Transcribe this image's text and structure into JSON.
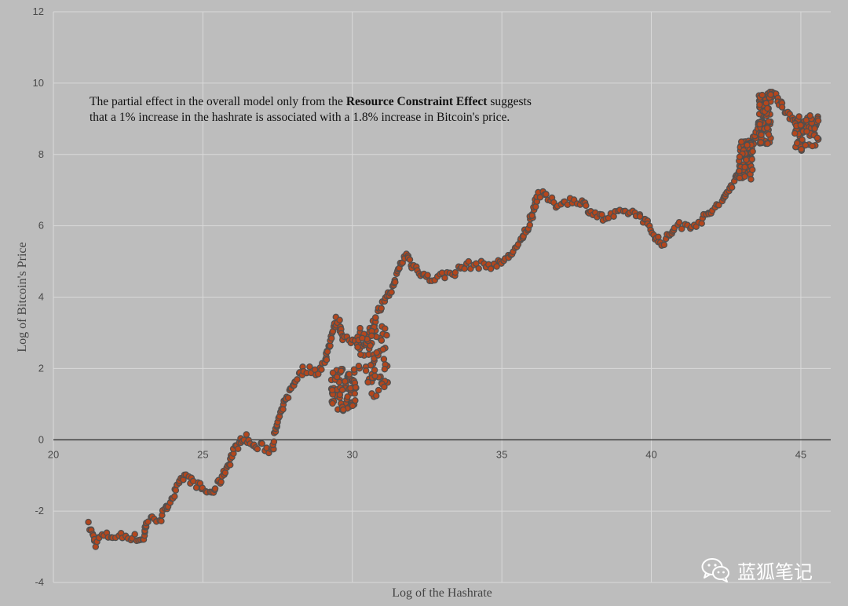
{
  "chart_data": {
    "type": "scatter",
    "xlabel": "Log of the Hashrate",
    "ylabel": "Log of Bitcoin's Price",
    "xlim": [
      20,
      46
    ],
    "ylim": [
      -4,
      12
    ],
    "xticks": [
      20,
      25,
      30,
      35,
      40,
      45
    ],
    "yticks": [
      -4,
      -2,
      0,
      2,
      4,
      6,
      8,
      10,
      12
    ],
    "grid": true,
    "marker_fill": "#b5461c",
    "marker_edge": "#4f4f4f",
    "background": "#bdbdbd",
    "annotation": {
      "before": "The partial effect in the overall model only from the ",
      "bold": "Resource Constraint Effect",
      "after": " suggests that a 1% increase in the hashrate is associated with a 1.8% increase in Bitcoin's price."
    },
    "trend": [
      [
        21.2,
        -2.4
      ],
      [
        21.4,
        -2.9
      ],
      [
        21.6,
        -2.7
      ],
      [
        22.0,
        -2.7
      ],
      [
        22.5,
        -2.7
      ],
      [
        23.0,
        -2.8
      ],
      [
        23.1,
        -2.3
      ],
      [
        23.4,
        -2.2
      ],
      [
        23.6,
        -2.2
      ],
      [
        23.9,
        -1.7
      ],
      [
        24.2,
        -1.3
      ],
      [
        24.4,
        -1.0
      ],
      [
        24.7,
        -1.2
      ],
      [
        25.0,
        -1.4
      ],
      [
        25.3,
        -1.5
      ],
      [
        25.6,
        -1.1
      ],
      [
        25.9,
        -0.6
      ],
      [
        26.1,
        -0.2
      ],
      [
        26.4,
        0.1
      ],
      [
        26.7,
        -0.2
      ],
      [
        27.0,
        -0.2
      ],
      [
        27.3,
        -0.3
      ],
      [
        27.5,
        0.5
      ],
      [
        27.8,
        1.2
      ],
      [
        28.1,
        1.7
      ],
      [
        28.4,
        2.0
      ],
      [
        28.8,
        1.9
      ],
      [
        29.1,
        2.2
      ],
      [
        29.3,
        3.0
      ],
      [
        29.5,
        3.4
      ],
      [
        29.7,
        2.9
      ],
      [
        30.0,
        2.7
      ],
      [
        30.3,
        2.6
      ],
      [
        30.5,
        2.8
      ],
      [
        30.8,
        3.5
      ],
      [
        31.1,
        3.9
      ],
      [
        31.4,
        4.4
      ],
      [
        31.6,
        4.9
      ],
      [
        31.8,
        5.2
      ],
      [
        32.0,
        4.9
      ],
      [
        32.3,
        4.7
      ],
      [
        32.6,
        4.5
      ],
      [
        33.0,
        4.6
      ],
      [
        33.4,
        4.7
      ],
      [
        33.8,
        4.9
      ],
      [
        34.3,
        4.9
      ],
      [
        34.8,
        4.9
      ],
      [
        35.2,
        5.1
      ],
      [
        35.6,
        5.5
      ],
      [
        35.9,
        6.0
      ],
      [
        36.2,
        6.9
      ],
      [
        36.5,
        6.8
      ],
      [
        36.8,
        6.6
      ],
      [
        37.2,
        6.7
      ],
      [
        37.6,
        6.7
      ],
      [
        38.0,
        6.4
      ],
      [
        38.4,
        6.2
      ],
      [
        38.8,
        6.3
      ],
      [
        39.2,
        6.4
      ],
      [
        39.6,
        6.3
      ],
      [
        40.0,
        5.9
      ],
      [
        40.3,
        5.5
      ],
      [
        40.5,
        5.6
      ],
      [
        40.8,
        6.0
      ],
      [
        41.2,
        6.0
      ],
      [
        41.6,
        6.1
      ],
      [
        42.0,
        6.4
      ],
      [
        42.4,
        6.7
      ],
      [
        42.8,
        7.3
      ],
      [
        43.1,
        7.9
      ],
      [
        43.4,
        8.4
      ],
      [
        43.7,
        9.0
      ],
      [
        43.9,
        9.6
      ],
      [
        44.1,
        9.8
      ],
      [
        44.4,
        9.3
      ],
      [
        44.7,
        9.0
      ],
      [
        45.0,
        8.8
      ],
      [
        45.3,
        8.7
      ],
      [
        45.5,
        8.8
      ]
    ],
    "clusters": [
      {
        "x": [
          29.3,
          30.1
        ],
        "y": [
          0.8,
          2.0
        ]
      },
      {
        "x": [
          30.1,
          31.2
        ],
        "y": [
          1.2,
          3.2
        ]
      },
      {
        "x": [
          43.6,
          44.0
        ],
        "y": [
          8.3,
          9.7
        ]
      },
      {
        "x": [
          44.8,
          45.6
        ],
        "y": [
          8.1,
          9.1
        ]
      },
      {
        "x": [
          42.9,
          43.4
        ],
        "y": [
          7.3,
          8.4
        ]
      }
    ]
  },
  "watermark": {
    "text": "蓝狐笔记",
    "icon": "wechat-icon"
  }
}
